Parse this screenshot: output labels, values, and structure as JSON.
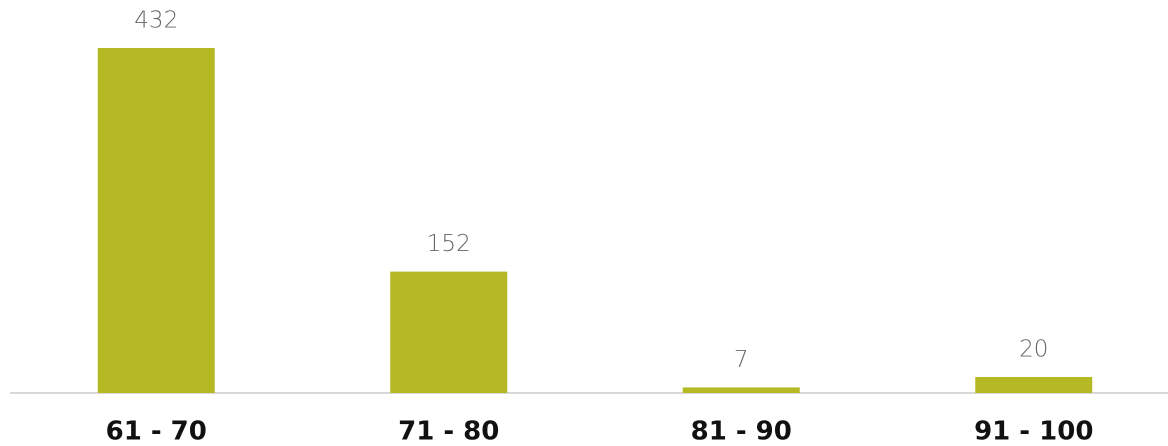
{
  "chart_data": {
    "type": "bar",
    "categories": [
      "61 - 70",
      "71 - 80",
      "81 - 90",
      "91 - 100"
    ],
    "values": [
      432,
      152,
      7,
      20
    ],
    "color": "#b5b923"
  }
}
